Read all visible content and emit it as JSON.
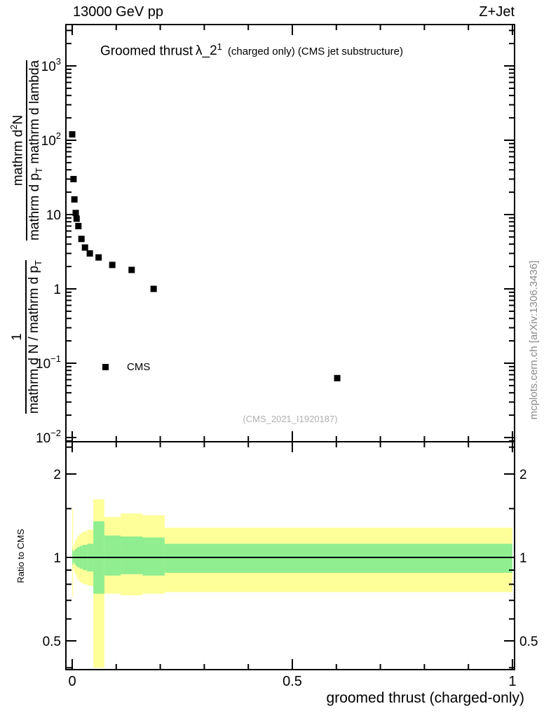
{
  "header": {
    "left": "13000 GeV pp",
    "right": "Z+Jet"
  },
  "title": {
    "text": "Groomed thrust",
    "symbol": "λ_2",
    "symbol_sup": "1",
    "note": "(charged only) (CMS jet substructure)"
  },
  "legend": {
    "series": "CMS"
  },
  "watermark": "(CMS_2021_I1920187)",
  "credit": "mcplots.cern.ch [arXiv:1306.3436]",
  "axes": {
    "y_main_label": {
      "frac1_num": "1",
      "frac1_den": "mathrm d N / mathrm d p",
      "frac1_den_sub": "T",
      "frac2_num": "mathrm d",
      "frac2_num_sup": "2",
      "frac2_num_tail": "N",
      "frac2_den": "mathrm d p",
      "frac2_den_sub": "T",
      "frac2_den_tail": " mathrm d lambda"
    }
  },
  "chart_data": {
    "type": "scatter",
    "title": "Groomed thrust λ_2^1 (charged only) (CMS jet substructure)",
    "xlabel": "groomed thrust (charged-only)",
    "ylabel_main": "1/(mathrm dN/mathrm dp_T) mathrm d^2N/(mathrm dp_T mathrm dlambda)",
    "ylabel_ratio": "Ratio to CMS",
    "panels": [
      {
        "id": "main",
        "type": "scatter",
        "yscale": "log",
        "xlim": [
          -0.015,
          1.005
        ],
        "ylim": [
          0.009,
          3500
        ],
        "yticks": [
          {
            "v": 1000,
            "label": "10",
            "exp": "3"
          },
          {
            "v": 100,
            "label": "10",
            "exp": "2"
          },
          {
            "v": 10,
            "label": "10"
          },
          {
            "v": 1,
            "label": "1"
          },
          {
            "v": 0.1,
            "label": "10",
            "exp": "−1"
          },
          {
            "v": 0.01,
            "label": "10",
            "exp": "−2"
          }
        ],
        "series": [
          {
            "name": "CMS",
            "marker": "square",
            "color": "#000000",
            "points": [
              [
                0.0,
                120
              ],
              [
                0.003,
                30
              ],
              [
                0.005,
                16
              ],
              [
                0.008,
                10.5
              ],
              [
                0.01,
                8.8
              ],
              [
                0.014,
                7.0
              ],
              [
                0.021,
                4.7
              ],
              [
                0.029,
                3.6
              ],
              [
                0.04,
                3.0
              ],
              [
                0.06,
                2.65
              ],
              [
                0.091,
                2.1
              ],
              [
                0.135,
                1.8
              ],
              [
                0.185,
                1.0
              ],
              [
                0.602,
                0.063
              ]
            ]
          }
        ]
      },
      {
        "id": "ratio",
        "type": "band",
        "yscale": "log",
        "ylim": [
          0.394,
          2.62
        ],
        "reference_line": 1,
        "yticks": [
          {
            "v": 2,
            "label": "2"
          },
          {
            "v": 1,
            "label": "1"
          },
          {
            "v": 0.5,
            "label": "0.5"
          }
        ],
        "yticks_minor": [
          0.4,
          0.6,
          0.7,
          0.8,
          0.9,
          1.5,
          2.5
        ],
        "xticks": [
          {
            "v": 0,
            "label": "0"
          },
          {
            "v": 0.5,
            "label": "0.5"
          },
          {
            "v": 1,
            "label": "1"
          }
        ],
        "band_colors": {
          "outer": "#ffff99",
          "inner": "#90ee90"
        },
        "bands": [
          {
            "x": [
              0.0,
              0.002
            ],
            "outer": [
              0.72,
              1.5
            ],
            "inner": [
              0.94,
              1.07
            ]
          },
          {
            "x": [
              0.002,
              0.004
            ],
            "outer": [
              0.91,
              1.1
            ],
            "inner": [
              0.96,
              1.05
            ]
          },
          {
            "x": [
              0.004,
              0.006
            ],
            "outer": [
              0.89,
              1.12
            ],
            "inner": [
              0.95,
              1.06
            ]
          },
          {
            "x": [
              0.006,
              0.009
            ],
            "outer": [
              0.87,
              1.15
            ],
            "inner": [
              0.94,
              1.07
            ]
          },
          {
            "x": [
              0.009,
              0.012
            ],
            "outer": [
              0.85,
              1.17
            ],
            "inner": [
              0.93,
              1.08
            ]
          },
          {
            "x": [
              0.012,
              0.017
            ],
            "outer": [
              0.83,
              1.2
            ],
            "inner": [
              0.92,
              1.09
            ]
          },
          {
            "x": [
              0.017,
              0.024
            ],
            "outer": [
              0.81,
              1.22
            ],
            "inner": [
              0.91,
              1.1
            ]
          },
          {
            "x": [
              0.024,
              0.034
            ],
            "outer": [
              0.8,
              1.24
            ],
            "inner": [
              0.9,
              1.11
            ]
          },
          {
            "x": [
              0.034,
              0.048
            ],
            "outer": [
              0.79,
              1.26
            ],
            "inner": [
              0.89,
              1.12
            ]
          },
          {
            "x": [
              0.048,
              0.073
            ],
            "outer": [
              0.4,
              1.62
            ],
            "inner": [
              0.74,
              1.35
            ]
          },
          {
            "x": [
              0.073,
              0.11
            ],
            "outer": [
              0.74,
              1.4
            ],
            "inner": [
              0.86,
              1.2
            ]
          },
          {
            "x": [
              0.11,
              0.16
            ],
            "outer": [
              0.73,
              1.44
            ],
            "inner": [
              0.87,
              1.19
            ]
          },
          {
            "x": [
              0.16,
              0.21
            ],
            "outer": [
              0.74,
              1.42
            ],
            "inner": [
              0.86,
              1.18
            ]
          },
          {
            "x": [
              0.21,
              1.0
            ],
            "outer": [
              0.75,
              1.28
            ],
            "inner": [
              0.88,
              1.12
            ]
          }
        ]
      }
    ]
  }
}
